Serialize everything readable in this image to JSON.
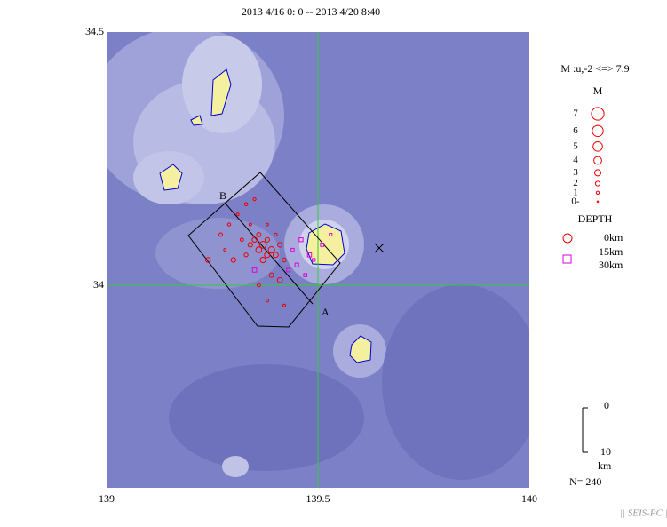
{
  "title": "2013 4/16 0: 0 -- 2013 4/20 8:40",
  "map": {
    "xlim": [
      139,
      140
    ],
    "ylim": [
      33.6,
      34.5
    ],
    "xticks": [
      139,
      139.5,
      140
    ],
    "yticks": [
      34,
      34.5
    ],
    "section": {
      "start_label": "B",
      "end_label": "A"
    },
    "quakes": [
      [
        139.37,
        34.08,
        3.4,
        5
      ],
      [
        139.36,
        34.07,
        2.8,
        8
      ],
      [
        139.38,
        34.06,
        2.5,
        10
      ],
      [
        139.35,
        34.09,
        2.2,
        6
      ],
      [
        139.39,
        34.07,
        3.1,
        4
      ],
      [
        139.34,
        34.08,
        2.0,
        9
      ],
      [
        139.4,
        34.06,
        2.4,
        7
      ],
      [
        139.36,
        34.1,
        1.8,
        5
      ],
      [
        139.33,
        34.06,
        1.5,
        12
      ],
      [
        139.41,
        34.08,
        2.1,
        6
      ],
      [
        139.37,
        34.05,
        2.6,
        11
      ],
      [
        139.38,
        34.09,
        1.9,
        8
      ],
      [
        139.32,
        34.09,
        1.2,
        7
      ],
      [
        139.3,
        34.05,
        2.0,
        10
      ],
      [
        139.42,
        34.05,
        1.6,
        9
      ],
      [
        139.29,
        34.12,
        1.0,
        6
      ],
      [
        139.31,
        34.14,
        0.8,
        8
      ],
      [
        139.33,
        34.16,
        1.1,
        5
      ],
      [
        139.35,
        34.17,
        0.9,
        7
      ],
      [
        139.27,
        34.1,
        1.3,
        9
      ],
      [
        139.28,
        34.07,
        0.7,
        11
      ],
      [
        139.39,
        34.02,
        1.9,
        10
      ],
      [
        139.41,
        34.01,
        2.3,
        8
      ],
      [
        139.36,
        34.0,
        1.2,
        9
      ],
      [
        139.38,
        33.97,
        0.9,
        12
      ],
      [
        139.42,
        33.96,
        0.8,
        10
      ],
      [
        139.45,
        34.04,
        1.4,
        18
      ],
      [
        139.47,
        34.02,
        1.1,
        22
      ],
      [
        139.44,
        34.07,
        1.0,
        20
      ],
      [
        139.49,
        34.05,
        0.9,
        25
      ],
      [
        139.51,
        34.08,
        1.2,
        28
      ],
      [
        139.53,
        34.1,
        0.8,
        26
      ],
      [
        139.46,
        34.09,
        1.5,
        19
      ],
      [
        139.24,
        34.05,
        2.2,
        6
      ],
      [
        139.35,
        34.03,
        1.7,
        16
      ],
      [
        139.38,
        34.12,
        0.6,
        7
      ],
      [
        139.34,
        34.12,
        0.7,
        8
      ],
      [
        139.4,
        34.1,
        1.0,
        9
      ],
      [
        139.43,
        34.03,
        1.3,
        17
      ],
      [
        139.48,
        34.06,
        1.6,
        21
      ]
    ]
  },
  "legend": {
    "range": "M :u,-2 <=> 7.9",
    "m_title": "M",
    "magnitudes": [
      {
        "value": 7,
        "label": "7"
      },
      {
        "value": 6,
        "label": "6"
      },
      {
        "value": 5,
        "label": "5"
      },
      {
        "value": 4,
        "label": "4"
      },
      {
        "value": 3,
        "label": "3"
      },
      {
        "value": 2,
        "label": "2"
      },
      {
        "value": 1,
        "label": "1"
      },
      {
        "value": 0,
        "label": "0-"
      }
    ],
    "depth_title": "DEPTH",
    "depths": [
      "0km",
      "15km",
      "30km"
    ]
  },
  "scale": {
    "top": "0",
    "bottom": "10",
    "unit": "km"
  },
  "count": "N= 240",
  "footer": "|| SEIS-PC ||"
}
